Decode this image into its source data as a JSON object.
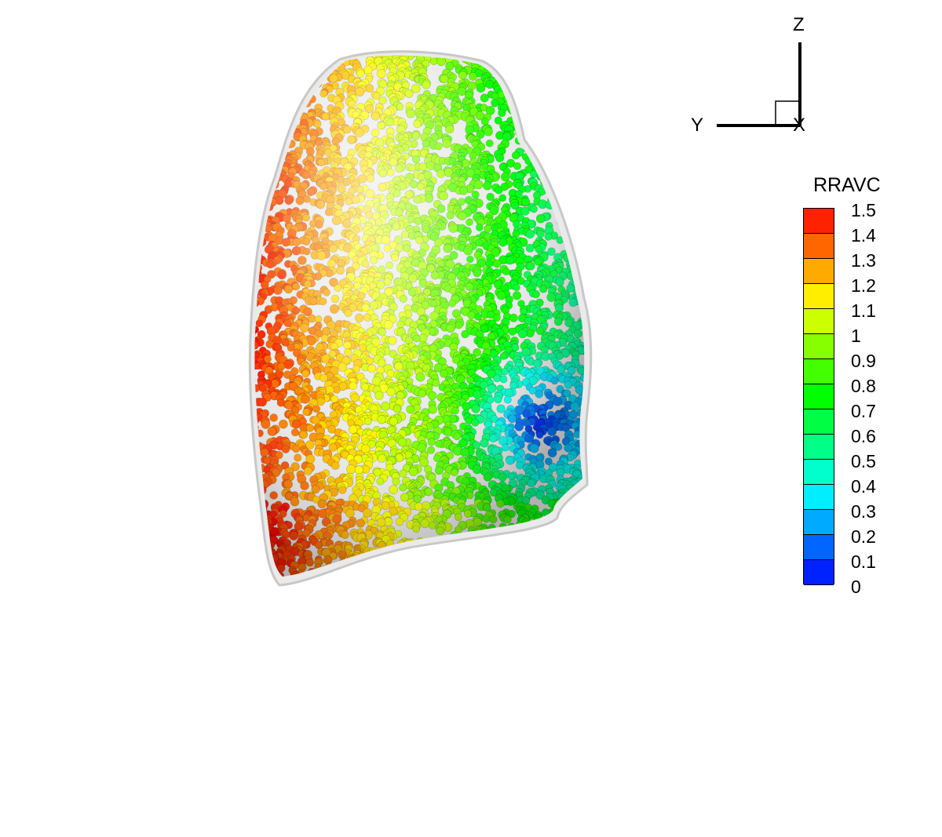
{
  "axes_triad": {
    "z_label": "Z",
    "y_label": "Y",
    "x_label": "X"
  },
  "legend": {
    "title": "RRAVC",
    "ticks": [
      "1.5",
      "1.4",
      "1.3",
      "1.2",
      "1.1",
      "1",
      "0.9",
      "0.8",
      "0.7",
      "0.6",
      "0.5",
      "0.4",
      "0.3",
      "0.2",
      "0.1",
      "0"
    ],
    "range": [
      0,
      1.5
    ],
    "colormap": "rainbow",
    "colors": [
      "#ff0000",
      "#ff4000",
      "#ff8000",
      "#ffbf00",
      "#ffff00",
      "#bfff00",
      "#80ff00",
      "#40ff00",
      "#00ff00",
      "#00ff40",
      "#00ff80",
      "#00ffbf",
      "#00ffff",
      "#00bfff",
      "#0080ff",
      "#0040ff",
      "#0000ff"
    ]
  },
  "scene": {
    "object": "lung-particle-cloud",
    "particle_color_variable": "RRAVC"
  }
}
